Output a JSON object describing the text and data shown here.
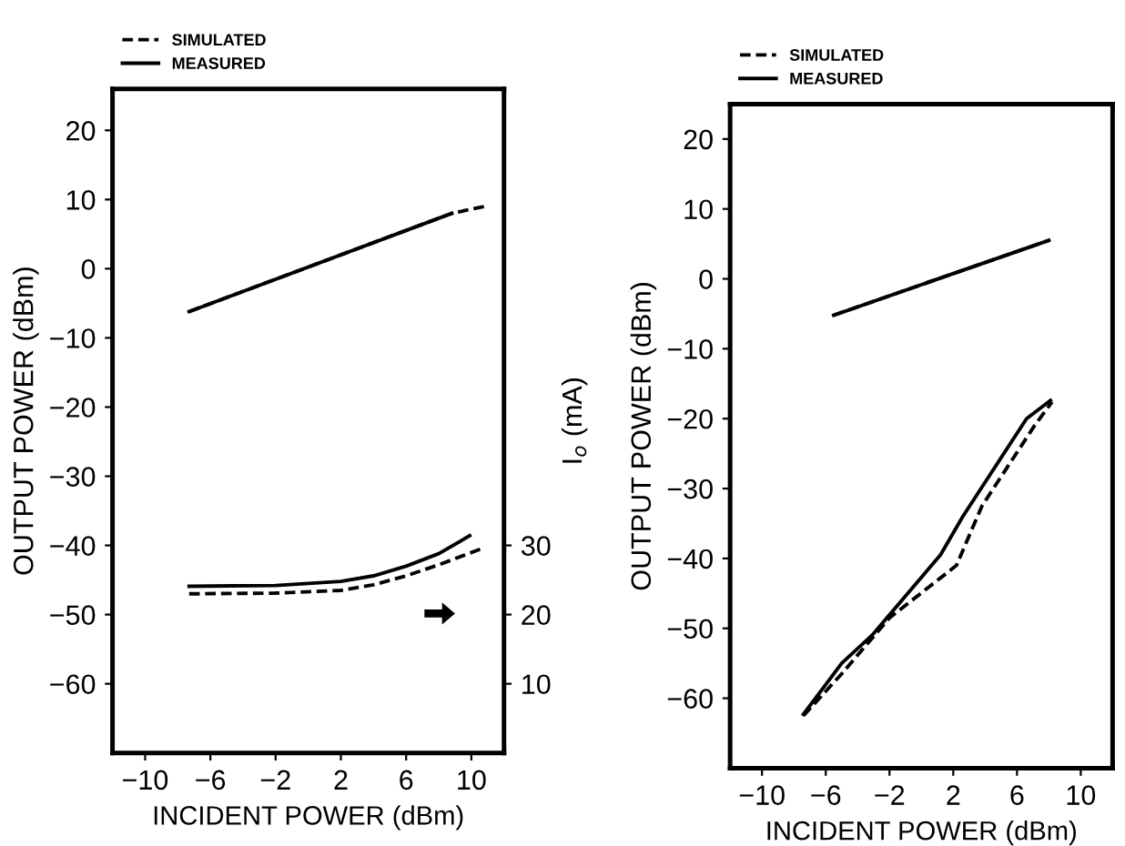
{
  "chart_data": [
    {
      "type": "line",
      "xlabel": "INCIDENT POWER (dBm)",
      "ylabel": "OUTPUT POWER (dBm)",
      "y2label": "I$_{o}$ (mA)",
      "xlim": [
        -12,
        12
      ],
      "ylim": [
        -70,
        26
      ],
      "y2lim": [
        0,
        96
      ],
      "xticks": [
        {
          "value": -10,
          "label": "−10"
        },
        {
          "value": -6,
          "label": "−6"
        },
        {
          "value": -2,
          "label": "−2"
        },
        2,
        6,
        10
      ],
      "yticks": [
        {
          "value": -60,
          "label": "−60"
        },
        {
          "value": -50,
          "label": "−50"
        },
        {
          "value": -40,
          "label": "−40"
        },
        {
          "value": -30,
          "label": "−30"
        },
        {
          "value": -20,
          "label": "−20"
        },
        {
          "value": -10,
          "label": "−10"
        },
        0,
        10,
        20
      ],
      "y2ticks": [
        10,
        20,
        30
      ],
      "legend": "top left",
      "grid": false,
      "series": [
        {
          "name": "SIMULATED",
          "color": "#000000",
          "line_style": "dashed",
          "x": [
            -7.3,
            8.8,
            10.8
          ],
          "values": [
            -6.2,
            8,
            9
          ]
        },
        {
          "name": "MEASURED",
          "color": "#000000",
          "line_style": "solid",
          "x": [
            -7.3,
            8.8
          ],
          "values": [
            -6.2,
            8
          ]
        },
        {
          "color": "#000000",
          "line_style": "dashed",
          "axis": "y2",
          "x": [
            -7.3,
            -2,
            2,
            4,
            6,
            8,
            10.6
          ],
          "values": [
            23,
            23.1,
            23.5,
            24.3,
            25.6,
            27.2,
            29.5
          ]
        },
        {
          "color": "#000000",
          "line_style": "solid",
          "axis": "y2",
          "x": [
            -7.3,
            -2,
            2,
            4,
            6,
            8,
            9.9
          ],
          "values": [
            24.1,
            24.2,
            24.8,
            25.6,
            27,
            28.8,
            31.4
          ]
        }
      ]
    },
    {
      "type": "line",
      "xlabel": "INCIDENT POWER (dBm)",
      "ylabel": "OUTPUT POWER (dBm)",
      "xlim": [
        -12,
        12
      ],
      "ylim": [
        -70,
        25
      ],
      "xticks": [
        {
          "value": -10,
          "label": "−10"
        },
        {
          "value": -6,
          "label": "−6"
        },
        {
          "value": -2,
          "label": "−2"
        },
        2,
        6,
        10
      ],
      "yticks": [
        {
          "value": -60,
          "label": "−60"
        },
        {
          "value": -50,
          "label": "−50"
        },
        {
          "value": -40,
          "label": "−40"
        },
        {
          "value": -30,
          "label": "−30"
        },
        {
          "value": -20,
          "label": "−20"
        },
        {
          "value": -10,
          "label": "−10"
        },
        0,
        10,
        20
      ],
      "legend": "top left",
      "grid": false,
      "series": [
        {
          "name": "SIMULATED",
          "color": "#000000",
          "line_style": "dashed",
          "x": [
            -5.5,
            8.0
          ],
          "values": [
            -5.2,
            5.5
          ]
        },
        {
          "name": "MEASURED",
          "color": "#000000",
          "line_style": "solid",
          "x": [
            -5.5,
            8.0
          ],
          "values": [
            -5.2,
            5.5
          ]
        },
        {
          "color": "#000000",
          "line_style": "dashed",
          "x": [
            -7.4,
            -5,
            -2,
            2.2,
            3.8,
            7.1,
            8.2
          ],
          "values": [
            -62.5,
            -56.5,
            -48.5,
            -41,
            -32.5,
            -21,
            -17.6
          ]
        },
        {
          "color": "#000000",
          "line_style": "solid",
          "x": [
            -7.4,
            -5,
            -3.1,
            1.2,
            2.6,
            6.6,
            8.1
          ],
          "values": [
            -62.3,
            -55,
            -51,
            -39.5,
            -34,
            -20,
            -17.4
          ]
        }
      ]
    }
  ]
}
